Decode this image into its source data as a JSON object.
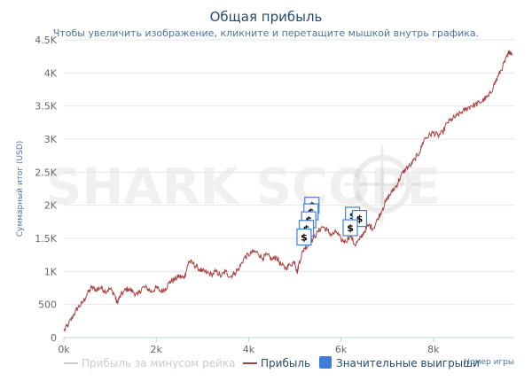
{
  "chart_data": {
    "type": "line",
    "title": "Общая прибыль",
    "subtitle": "Чтобы увеличить изображение, кликните и перетащите мышкой внутрь графика.",
    "ylabel": "Суммарный итог (USD)",
    "xlabel": "Номер игры",
    "xlim": [
      0,
      9750
    ],
    "ylim": [
      0,
      4500
    ],
    "x_ticks": [
      "0k",
      "2k",
      "4k",
      "6k",
      "8k"
    ],
    "x_tick_values": [
      0,
      2000,
      4000,
      6000,
      8000
    ],
    "y_ticks": [
      "0",
      "500",
      "1K",
      "1.5K",
      "2K",
      "2.5K",
      "3K",
      "3.5K",
      "4K",
      "4.5K"
    ],
    "y_tick_values": [
      0,
      500,
      1000,
      1500,
      2000,
      2500,
      3000,
      3500,
      4000,
      4500
    ],
    "grid": "horizontal",
    "legend_position": "bottom",
    "series": [
      {
        "name": "Прибыль за минусом рейка",
        "color": "#cccccc",
        "visible": false,
        "points": []
      },
      {
        "name": "Прибыль",
        "color": "#a94040",
        "visible": true,
        "points": [
          [
            0,
            100
          ],
          [
            100,
            200
          ],
          [
            200,
            330
          ],
          [
            300,
            450
          ],
          [
            400,
            520
          ],
          [
            500,
            650
          ],
          [
            600,
            760
          ],
          [
            700,
            720
          ],
          [
            800,
            760
          ],
          [
            900,
            700
          ],
          [
            1000,
            740
          ],
          [
            1100,
            650
          ],
          [
            1150,
            520
          ],
          [
            1200,
            600
          ],
          [
            1300,
            700
          ],
          [
            1400,
            740
          ],
          [
            1500,
            690
          ],
          [
            1600,
            640
          ],
          [
            1700,
            760
          ],
          [
            1800,
            750
          ],
          [
            1900,
            690
          ],
          [
            2000,
            760
          ],
          [
            2100,
            700
          ],
          [
            2200,
            740
          ],
          [
            2300,
            850
          ],
          [
            2400,
            880
          ],
          [
            2500,
            930
          ],
          [
            2600,
            900
          ],
          [
            2650,
            1000
          ],
          [
            2700,
            1150
          ],
          [
            2800,
            1120
          ],
          [
            2900,
            1050
          ],
          [
            3000,
            1000
          ],
          [
            3100,
            980
          ],
          [
            3200,
            950
          ],
          [
            3300,
            1000
          ],
          [
            3400,
            930
          ],
          [
            3500,
            1000
          ],
          [
            3600,
            920
          ],
          [
            3700,
            980
          ],
          [
            3800,
            1050
          ],
          [
            3900,
            1200
          ],
          [
            4000,
            1250
          ],
          [
            4100,
            1300
          ],
          [
            4200,
            1280
          ],
          [
            4300,
            1200
          ],
          [
            4400,
            1250
          ],
          [
            4500,
            1180
          ],
          [
            4600,
            1220
          ],
          [
            4700,
            1100
          ],
          [
            4800,
            1050
          ],
          [
            4900,
            1100
          ],
          [
            5000,
            1150
          ],
          [
            5050,
            980
          ],
          [
            5100,
            1150
          ],
          [
            5200,
            1350
          ],
          [
            5300,
            1400
          ],
          [
            5400,
            1500
          ],
          [
            5500,
            1600
          ],
          [
            5600,
            1680
          ],
          [
            5700,
            1620
          ],
          [
            5800,
            1550
          ],
          [
            5900,
            1600
          ],
          [
            6000,
            1480
          ],
          [
            6100,
            1450
          ],
          [
            6200,
            1550
          ],
          [
            6300,
            1400
          ],
          [
            6400,
            1480
          ],
          [
            6500,
            1600
          ],
          [
            6600,
            1700
          ],
          [
            6700,
            1650
          ],
          [
            6800,
            1800
          ],
          [
            6900,
            1950
          ],
          [
            7000,
            2100
          ],
          [
            7100,
            2200
          ],
          [
            7200,
            2300
          ],
          [
            7300,
            2450
          ],
          [
            7400,
            2550
          ],
          [
            7500,
            2600
          ],
          [
            7600,
            2700
          ],
          [
            7700,
            2800
          ],
          [
            7800,
            3000
          ],
          [
            7900,
            3050
          ],
          [
            8000,
            3100
          ],
          [
            8100,
            3050
          ],
          [
            8200,
            3100
          ],
          [
            8300,
            3250
          ],
          [
            8400,
            3300
          ],
          [
            8500,
            3350
          ],
          [
            8600,
            3400
          ],
          [
            8700,
            3450
          ],
          [
            8800,
            3500
          ],
          [
            8900,
            3520
          ],
          [
            9000,
            3550
          ],
          [
            9100,
            3600
          ],
          [
            9200,
            3650
          ],
          [
            9300,
            3800
          ],
          [
            9400,
            3950
          ],
          [
            9500,
            4100
          ],
          [
            9600,
            4250
          ],
          [
            9650,
            4330
          ],
          [
            9700,
            4300
          ]
        ]
      },
      {
        "name": "Значительные выигрыши",
        "color": "#3d7fd6",
        "type": "markers",
        "marker_label": "$",
        "points": [
          [
            5370,
            2000
          ],
          [
            5350,
            1900
          ],
          [
            5300,
            1780
          ],
          [
            5250,
            1650
          ],
          [
            5200,
            1520
          ],
          [
            6250,
            1850
          ],
          [
            6400,
            1800
          ],
          [
            6200,
            1660
          ]
        ]
      }
    ],
    "watermark": "SHARK SCOPE"
  }
}
